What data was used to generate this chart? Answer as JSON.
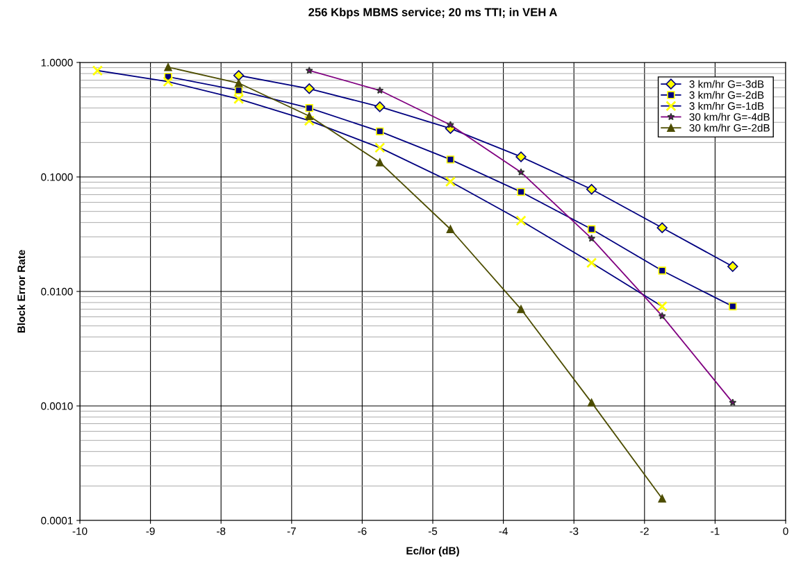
{
  "chart_data": {
    "type": "line",
    "title": "256 Kbps MBMS service; 20 ms TTI; in VEH A",
    "xlabel": "Ec/Ior (dB)",
    "ylabel": "Block Error Rate",
    "log": "y",
    "grid": true,
    "legend": "top right",
    "xlim": [
      -10,
      0
    ],
    "xticks": [
      -10,
      -9,
      -8,
      -7,
      -6,
      -5,
      -4,
      -3,
      -2,
      -1,
      0
    ],
    "ylim": [
      0.0001,
      1
    ],
    "yticks": [
      {
        "value": 0.0001,
        "label": "0.0001"
      },
      {
        "value": 0.001,
        "label": "0.0010"
      },
      {
        "value": 0.01,
        "label": "0.0100"
      },
      {
        "value": 0.1,
        "label": "0.1000"
      },
      {
        "value": 1,
        "label": "1.0000"
      }
    ],
    "series": [
      {
        "name": "3 km/hr G=-3dB",
        "color": "#000080",
        "marker": "diamond",
        "x": [
          -7.75,
          -6.75,
          -5.75,
          -4.75,
          -3.75,
          -2.75,
          -1.75,
          -0.75
        ],
        "values": [
          0.77,
          0.59,
          0.41,
          0.265,
          0.15,
          0.078,
          0.036,
          0.0165
        ]
      },
      {
        "name": "3 km/hr G=-2dB",
        "color": "#000080",
        "marker": "square",
        "x": [
          -8.75,
          -7.75,
          -6.75,
          -5.75,
          -4.75,
          -3.75,
          -2.75,
          -1.75,
          -0.75
        ],
        "values": [
          0.75,
          0.57,
          0.4,
          0.25,
          0.142,
          0.074,
          0.035,
          0.0152,
          0.0074
        ]
      },
      {
        "name": "3 km/hr G=-1dB",
        "color": "#000080",
        "marker": "cross",
        "x": [
          -9.75,
          -8.75,
          -7.75,
          -6.75,
          -5.75,
          -4.75,
          -3.75,
          -2.75,
          -1.75
        ],
        "values": [
          0.85,
          0.68,
          0.48,
          0.31,
          0.18,
          0.091,
          0.0415,
          0.0178,
          0.0074
        ]
      },
      {
        "name": "30 km/hr G=-4dB",
        "color": "#800080",
        "marker": "star",
        "x": [
          -6.75,
          -5.75,
          -4.75,
          -3.75,
          -2.75,
          -1.75,
          -0.75
        ],
        "values": [
          0.85,
          0.57,
          0.285,
          0.11,
          0.029,
          0.0061,
          0.00107
        ]
      },
      {
        "name": "30 km/hr G=-2dB",
        "color": "#4d4d00",
        "marker": "triangle",
        "x": [
          -8.75,
          -7.75,
          -6.75,
          -5.75,
          -4.75,
          -3.75,
          -2.75,
          -1.75
        ],
        "values": [
          0.91,
          0.66,
          0.34,
          0.134,
          0.035,
          0.007,
          0.00107,
          0.000155
        ]
      }
    ]
  }
}
